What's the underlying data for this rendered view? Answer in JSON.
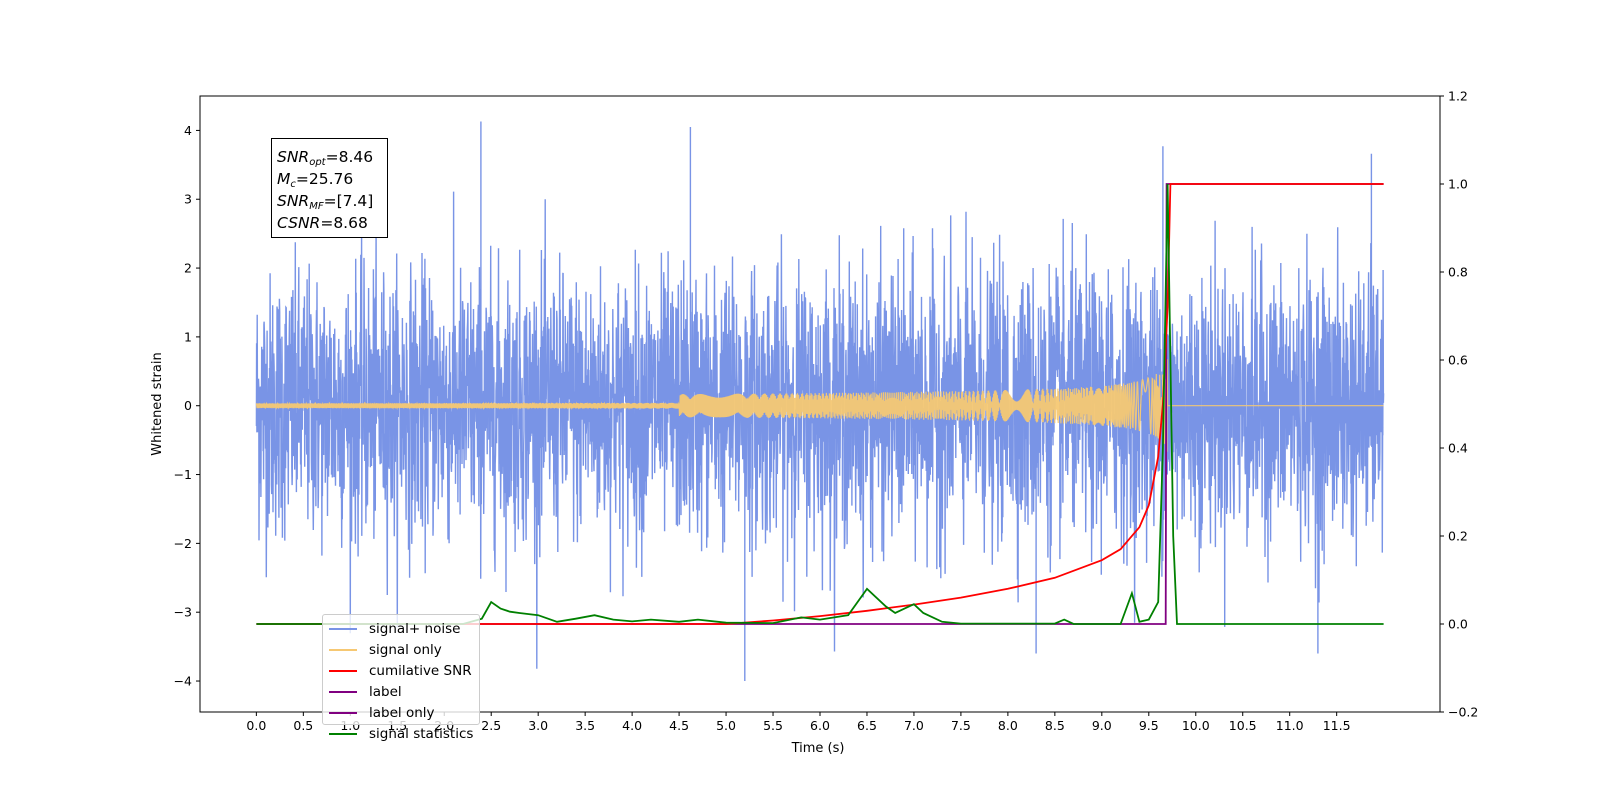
{
  "chart_data": {
    "type": "line",
    "title": "",
    "xlabel": "Time (s)",
    "ylabel": "Whitened strain",
    "xlim": [
      -0.6,
      12.6
    ],
    "ylim": [
      -4.45,
      4.5
    ],
    "y2lim": [
      -0.2,
      1.2
    ],
    "xticks": [
      "0.0",
      "0.5",
      "1.0",
      "1.5",
      "2.0",
      "2.5",
      "3.0",
      "3.5",
      "4.0",
      "4.5",
      "5.0",
      "5.5",
      "6.0",
      "6.5",
      "7.0",
      "7.5",
      "8.0",
      "8.5",
      "9.0",
      "9.5",
      "10.0",
      "10.5",
      "11.0",
      "11.5"
    ],
    "yticks": [
      "4",
      "3",
      "2",
      "1",
      "0",
      "−1",
      "−2",
      "−3",
      "−4"
    ],
    "y2ticks": [
      "1.2",
      "1.0",
      "0.8",
      "0.6",
      "0.4",
      "0.2",
      "0.0",
      "−0.2"
    ],
    "legend_position": "lower-left",
    "annotation": {
      "snr_opt": {
        "label": "SNR",
        "sub": "opt",
        "value": "=8.46"
      },
      "mc": {
        "label": "M",
        "sub": "c",
        "value": "=25.76"
      },
      "snr_mf": {
        "label": "SNR",
        "sub": "MF",
        "value": "=[7.4]"
      },
      "csnr": {
        "label": "CSNR",
        "value": "=8.68"
      }
    },
    "series": [
      {
        "name": "signal+ noise",
        "color": "#7994e6",
        "axis": "left",
        "description_values": {
          "x_range": [
            0.0,
            12.0
          ],
          "amplitude_range": [
            -4.0,
            4.13
          ]
        },
        "peaks": [
          [
            2.39,
            4.13
          ],
          [
            4.62,
            4.05
          ],
          [
            9.65,
            3.77
          ],
          [
            11.87,
            3.66
          ],
          [
            5.2,
            -4.0
          ],
          [
            8.3,
            -3.6
          ],
          [
            11.3,
            -3.6
          ]
        ]
      },
      {
        "name": "signal only",
        "color": "#f6c873",
        "axis": "left",
        "description_values": {
          "x_range": [
            0.0,
            12.0
          ],
          "merger_time": 9.7,
          "peak_amplitude": 0.8
        }
      },
      {
        "name": "cumilative SNR",
        "color": "#ff0000",
        "axis": "right",
        "x": [
          0.0,
          5.0,
          5.5,
          6.0,
          6.5,
          7.0,
          7.5,
          8.0,
          8.5,
          9.0,
          9.2,
          9.4,
          9.5,
          9.6,
          9.65,
          9.7,
          9.73,
          12.0
        ],
        "y": [
          0.0,
          0.0,
          0.008,
          0.018,
          0.03,
          0.044,
          0.06,
          0.08,
          0.105,
          0.145,
          0.17,
          0.22,
          0.27,
          0.38,
          0.5,
          0.72,
          1.0,
          1.0
        ]
      },
      {
        "name": "label",
        "color": "#800080",
        "axis": "right",
        "x": [
          0.0,
          9.68,
          9.69,
          12.0
        ],
        "y": [
          0.0,
          0.0,
          1.0,
          1.0
        ]
      },
      {
        "name": "label only",
        "color": "#800080",
        "axis": "right"
      },
      {
        "name": "signal statistics",
        "color": "#008000",
        "axis": "right",
        "x": [
          0.0,
          2.2,
          2.4,
          2.5,
          2.6,
          2.7,
          2.8,
          3.0,
          3.2,
          3.4,
          3.6,
          3.8,
          4.0,
          4.2,
          4.5,
          4.7,
          5.0,
          5.5,
          5.8,
          6.0,
          6.3,
          6.5,
          6.7,
          6.8,
          6.9,
          7.0,
          7.1,
          7.3,
          7.5,
          8.5,
          8.6,
          8.7,
          9.2,
          9.32,
          9.4,
          9.5,
          9.6,
          9.65,
          9.7,
          9.73,
          9.76,
          9.8,
          12.0
        ],
        "y": [
          0.0,
          0.0,
          0.012,
          0.05,
          0.035,
          0.028,
          0.025,
          0.02,
          0.005,
          0.012,
          0.02,
          0.01,
          0.006,
          0.01,
          0.005,
          0.01,
          0.003,
          0.002,
          0.015,
          0.01,
          0.02,
          0.08,
          0.04,
          0.025,
          0.035,
          0.045,
          0.025,
          0.005,
          0.001,
          0.001,
          0.01,
          0.0,
          0.0,
          0.07,
          0.005,
          0.01,
          0.05,
          0.4,
          1.0,
          0.6,
          0.2,
          0.0,
          0.0
        ]
      }
    ]
  }
}
